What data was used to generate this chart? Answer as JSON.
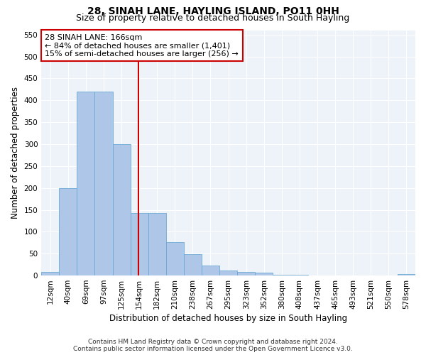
{
  "title": "28, SINAH LANE, HAYLING ISLAND, PO11 0HH",
  "subtitle": "Size of property relative to detached houses in South Hayling",
  "xlabel": "Distribution of detached houses by size in South Hayling",
  "ylabel": "Number of detached properties",
  "footer_line1": "Contains HM Land Registry data © Crown copyright and database right 2024.",
  "footer_line2": "Contains public sector information licensed under the Open Government Licence v3.0.",
  "bar_labels": [
    "12sqm",
    "40sqm",
    "69sqm",
    "97sqm",
    "125sqm",
    "154sqm",
    "182sqm",
    "210sqm",
    "238sqm",
    "267sqm",
    "295sqm",
    "323sqm",
    "352sqm",
    "380sqm",
    "408sqm",
    "437sqm",
    "465sqm",
    "493sqm",
    "521sqm",
    "550sqm",
    "578sqm"
  ],
  "bar_values": [
    8,
    200,
    420,
    420,
    300,
    143,
    143,
    77,
    48,
    23,
    12,
    8,
    7,
    2,
    1,
    0,
    0,
    0,
    0,
    0,
    3
  ],
  "bar_color": "#aec6e8",
  "bar_edge_color": "#6aaad4",
  "vline_x": 4.97,
  "vline_color": "#cc0000",
  "annotation_line1": "28 SINAH LANE: 166sqm",
  "annotation_line2": "← 84% of detached houses are smaller (1,401)",
  "annotation_line3": "15% of semi-detached houses are larger (256) →",
  "annotation_box_color": "#ffffff",
  "annotation_box_edge": "#cc0000",
  "ylim": [
    0,
    560
  ],
  "yticks": [
    0,
    50,
    100,
    150,
    200,
    250,
    300,
    350,
    400,
    450,
    500,
    550
  ],
  "title_fontsize": 10,
  "subtitle_fontsize": 9,
  "xlabel_fontsize": 8.5,
  "ylabel_fontsize": 8.5,
  "tick_fontsize": 7.5,
  "annotation_fontsize": 8,
  "footer_fontsize": 6.5,
  "bg_color": "#eef2f9",
  "fig_bg_color": "#ffffff",
  "grid_color": "#ffffff"
}
